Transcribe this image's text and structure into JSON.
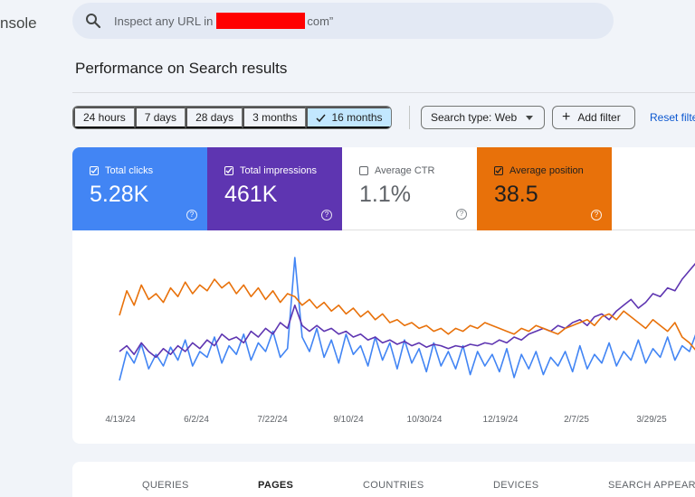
{
  "app": {
    "brand_fragment": "nsole"
  },
  "search": {
    "prefix": "Inspect any URL in ",
    "suffix": "com”"
  },
  "page_title": "Performance on Search results",
  "date_ranges": [
    {
      "label": "24 hours",
      "selected": false
    },
    {
      "label": "7 days",
      "selected": false
    },
    {
      "label": "28 days",
      "selected": false
    },
    {
      "label": "3 months",
      "selected": false
    },
    {
      "label": "16 months",
      "selected": true
    }
  ],
  "filters": {
    "search_type": "Search type: Web",
    "add_filter": "Add filter",
    "reset": "Reset filters"
  },
  "metrics": [
    {
      "label": "Total clicks",
      "value": "5.28K",
      "checked": true,
      "color": "#4285f4"
    },
    {
      "label": "Total impressions",
      "value": "461K",
      "checked": true,
      "color": "#5e35b1"
    },
    {
      "label": "Average CTR",
      "value": "1.1%",
      "checked": false,
      "color": "#00897b"
    },
    {
      "label": "Average position",
      "value": "38.5",
      "checked": true,
      "color": "#e8710a"
    }
  ],
  "chart_data": {
    "type": "line",
    "x_tick_labels": [
      "4/13/24",
      "6/2/24",
      "7/22/24",
      "9/10/24",
      "10/30/24",
      "12/19/24",
      "2/7/25",
      "3/29/25"
    ],
    "series": [
      {
        "name": "Total clicks",
        "color": "#4285f4",
        "values": [
          0.1,
          0.3,
          0.22,
          0.35,
          0.18,
          0.28,
          0.2,
          0.33,
          0.24,
          0.38,
          0.2,
          0.3,
          0.26,
          0.4,
          0.22,
          0.34,
          0.28,
          0.42,
          0.24,
          0.36,
          0.3,
          0.44,
          0.26,
          0.32,
          0.95,
          0.4,
          0.3,
          0.46,
          0.26,
          0.38,
          0.22,
          0.42,
          0.28,
          0.34,
          0.2,
          0.4,
          0.24,
          0.36,
          0.18,
          0.38,
          0.22,
          0.32,
          0.16,
          0.36,
          0.2,
          0.3,
          0.18,
          0.34,
          0.14,
          0.3,
          0.2,
          0.28,
          0.16,
          0.32,
          0.12,
          0.28,
          0.18,
          0.3,
          0.14,
          0.26,
          0.2,
          0.3,
          0.16,
          0.34,
          0.18,
          0.28,
          0.22,
          0.36,
          0.2,
          0.3,
          0.24,
          0.38,
          0.22,
          0.32,
          0.26,
          0.4,
          0.24,
          0.34,
          0.3,
          0.44
        ]
      },
      {
        "name": "Total impressions",
        "color": "#5e35b1",
        "values": [
          0.3,
          0.34,
          0.28,
          0.36,
          0.3,
          0.26,
          0.32,
          0.28,
          0.34,
          0.3,
          0.36,
          0.32,
          0.38,
          0.34,
          0.42,
          0.38,
          0.4,
          0.36,
          0.44,
          0.4,
          0.46,
          0.42,
          0.5,
          0.46,
          0.62,
          0.48,
          0.44,
          0.48,
          0.44,
          0.46,
          0.42,
          0.44,
          0.4,
          0.42,
          0.38,
          0.4,
          0.36,
          0.38,
          0.35,
          0.37,
          0.34,
          0.36,
          0.33,
          0.35,
          0.34,
          0.32,
          0.34,
          0.33,
          0.35,
          0.34,
          0.36,
          0.35,
          0.38,
          0.36,
          0.4,
          0.38,
          0.42,
          0.44,
          0.46,
          0.44,
          0.48,
          0.46,
          0.5,
          0.52,
          0.48,
          0.54,
          0.56,
          0.52,
          0.58,
          0.62,
          0.66,
          0.6,
          0.64,
          0.7,
          0.68,
          0.74,
          0.72,
          0.8,
          0.86,
          0.92
        ]
      },
      {
        "name": "Average position",
        "color": "#e8710a",
        "values": [
          0.55,
          0.72,
          0.62,
          0.76,
          0.66,
          0.7,
          0.64,
          0.74,
          0.68,
          0.78,
          0.7,
          0.76,
          0.72,
          0.8,
          0.74,
          0.78,
          0.7,
          0.76,
          0.68,
          0.74,
          0.66,
          0.72,
          0.64,
          0.7,
          0.68,
          0.62,
          0.66,
          0.6,
          0.64,
          0.58,
          0.62,
          0.56,
          0.6,
          0.54,
          0.58,
          0.52,
          0.56,
          0.5,
          0.52,
          0.48,
          0.5,
          0.46,
          0.48,
          0.44,
          0.46,
          0.42,
          0.46,
          0.44,
          0.48,
          0.46,
          0.5,
          0.48,
          0.46,
          0.44,
          0.42,
          0.46,
          0.44,
          0.48,
          0.46,
          0.44,
          0.42,
          0.46,
          0.48,
          0.5,
          0.52,
          0.48,
          0.54,
          0.56,
          0.52,
          0.58,
          0.54,
          0.5,
          0.46,
          0.52,
          0.48,
          0.44,
          0.5,
          0.4,
          0.36,
          0.3
        ]
      }
    ],
    "grid": false,
    "legend": "none"
  },
  "tabs": [
    {
      "label": "QUERIES",
      "active": false
    },
    {
      "label": "PAGES",
      "active": true
    },
    {
      "label": "COUNTRIES",
      "active": false
    },
    {
      "label": "DEVICES",
      "active": false
    },
    {
      "label": "SEARCH APPEARANCE",
      "active": false
    }
  ]
}
